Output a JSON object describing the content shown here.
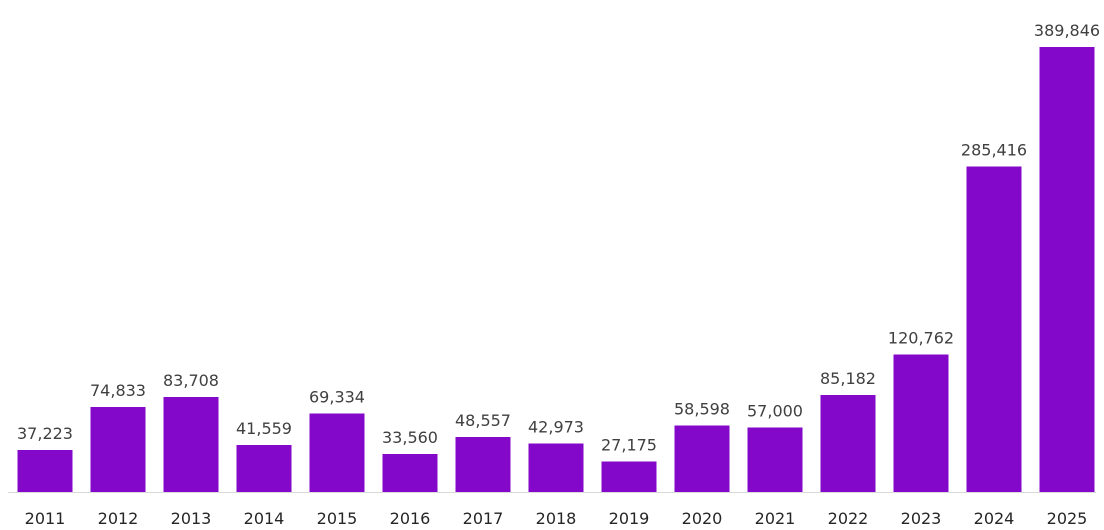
{
  "chart_data": {
    "type": "bar",
    "title": "",
    "xlabel": "",
    "ylabel": "",
    "categories": [
      "2011",
      "2012",
      "2013",
      "2014",
      "2015",
      "2016",
      "2017",
      "2018",
      "2019",
      "2020",
      "2021",
      "2022",
      "2023",
      "2024",
      "2025"
    ],
    "series": [
      {
        "values": [
          37223,
          74833,
          83708,
          41559,
          69334,
          33560,
          48557,
          42973,
          27175,
          58598,
          57000,
          85182,
          120762,
          285416,
          389846
        ],
        "labels": [
          "37,223",
          "74,833",
          "83,708",
          "41,559",
          "69,334",
          "33,560",
          "48,557",
          "42,973",
          "27,175",
          "58,598",
          "57,000",
          "85,182",
          "120,762",
          "285,416",
          "389,846"
        ],
        "color": "#8308c9"
      }
    ],
    "ylim": [
      0,
      389846
    ],
    "grid": false,
    "legend": "none",
    "axis_line_color": "#d9d9d9"
  }
}
